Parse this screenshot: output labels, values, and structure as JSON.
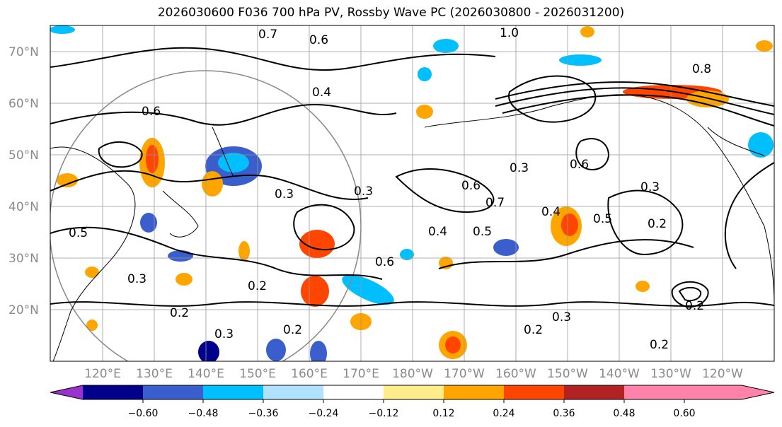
{
  "title": "2026030600 F036 700 hPa PV, Rossby Wave PC (2026030800 - 2026031200)",
  "map": {
    "latitude_labels": [
      "70°N",
      "60°N",
      "50°N",
      "40°N",
      "30°N",
      "20°N"
    ],
    "longitude_labels": [
      "120°E",
      "130°E",
      "140°E",
      "150°E",
      "160°E",
      "170°E",
      "180°W",
      "170°W",
      "160°W",
      "150°W",
      "140°W",
      "130°W",
      "120°W"
    ],
    "contour_labels": [
      "0.7",
      "0.6",
      "1.0",
      "0.6",
      "0.5",
      "0.4",
      "0.3",
      "0.3",
      "0.2",
      "0.2",
      "0.6",
      "0.3",
      "0.7",
      "0.6",
      "0.5",
      "0.5",
      "0.4",
      "0.3",
      "0.3",
      "0.2",
      "0.2",
      "0.2",
      "0.3",
      "0.6",
      "0.4",
      "0.2",
      "0.8",
      "0.3",
      "0.2"
    ]
  },
  "colorbar": {
    "tick_labels": [
      "−0.60",
      "−0.48",
      "−0.36",
      "−0.24",
      "−0.12",
      "0.12",
      "0.24",
      "0.36",
      "0.48",
      "0.60"
    ],
    "colors": [
      "#9a32cd",
      "#00008b",
      "#3a5fcd",
      "#00bfff",
      "#b0e2ff",
      "#ffffff",
      "#ffec8b",
      "#ffa500",
      "#ff4500",
      "#b22222",
      "#ff82ab"
    ]
  }
}
